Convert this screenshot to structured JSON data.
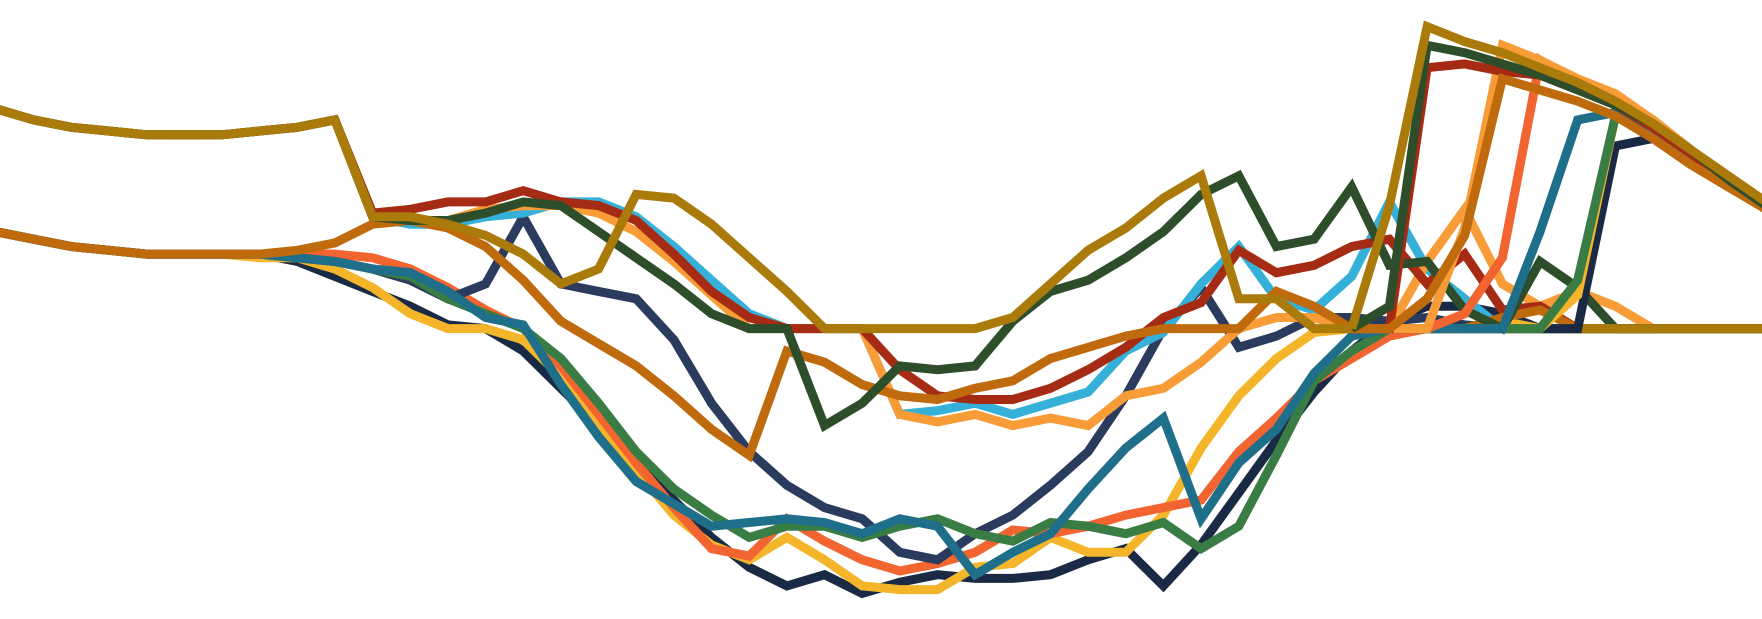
{
  "chart_data": {
    "type": "line",
    "x": [
      0,
      1,
      2,
      3,
      4,
      5,
      6,
      7,
      8,
      9,
      10,
      11,
      12,
      13,
      14,
      15,
      16,
      17,
      18,
      19,
      20,
      21,
      22,
      23,
      24,
      25,
      26,
      27,
      28,
      29,
      30,
      31,
      32,
      33,
      34,
      35,
      36,
      37,
      38,
      39,
      40,
      41,
      42,
      43,
      44,
      45,
      46,
      47
    ],
    "xlim": [
      0,
      47
    ],
    "ylim": [
      -7.6,
      8.6
    ],
    "grid": false,
    "series": [
      {
        "color": "#1b2a44",
        "values": [
          2.6,
          2.4,
          2.2,
          2.1,
          2.0,
          2.0,
          2.0,
          2.0,
          1.8,
          1.4,
          1.0,
          0.6,
          0.1,
          0.0,
          -0.6,
          -1.6,
          -2.6,
          -3.6,
          -4.6,
          -5.6,
          -6.4,
          -6.9,
          -6.6,
          -7.1,
          -6.8,
          -6.6,
          -6.7,
          -6.7,
          -6.6,
          -6.2,
          -5.9,
          -6.9,
          -5.8,
          -4.4,
          -3.0,
          -1.7,
          -0.6,
          0.2,
          0.6,
          0.6,
          0.4,
          0.0,
          0.0,
          0.0,
          0.0,
          0.0,
          0.0,
          0.0
        ]
      },
      {
        "color": "#f4b52a",
        "values": [
          2.6,
          2.4,
          2.2,
          2.1,
          2.0,
          2.0,
          2.0,
          1.9,
          1.9,
          1.6,
          1.1,
          0.4,
          0.0,
          0.0,
          -0.3,
          -1.3,
          -2.6,
          -3.8,
          -5.0,
          -5.8,
          -6.2,
          -5.6,
          -6.2,
          -6.9,
          -7.0,
          -7.0,
          -6.4,
          -6.3,
          -5.6,
          -6.0,
          -6.0,
          -5.0,
          -3.2,
          -1.8,
          -0.8,
          -0.1,
          0.0,
          0.0,
          0.0,
          0.0,
          0.2,
          0.0,
          0.0,
          0.0,
          0.0,
          0.0,
          0.0,
          0.0
        ]
      },
      {
        "color": "#f26430",
        "values": [
          2.6,
          2.4,
          2.2,
          2.1,
          2.0,
          2.0,
          2.0,
          2.0,
          2.0,
          2.0,
          1.9,
          1.6,
          1.1,
          0.5,
          0.0,
          -1.0,
          -2.3,
          -3.6,
          -4.8,
          -5.9,
          -6.1,
          -5.1,
          -5.7,
          -6.2,
          -6.5,
          -6.3,
          -6.0,
          -5.4,
          -5.5,
          -5.3,
          -5.0,
          -4.8,
          -4.6,
          -3.3,
          -2.4,
          -1.4,
          -0.8,
          -0.2,
          0.0,
          0.0,
          0.0,
          0.0,
          0.0,
          0.0,
          0.0,
          0.0,
          0.0,
          0.0
        ]
      },
      {
        "color": "#2b3b5e",
        "values": [
          2.6,
          2.4,
          2.2,
          2.1,
          2.0,
          2.0,
          2.0,
          2.0,
          1.9,
          1.8,
          1.6,
          1.3,
          0.8,
          1.2,
          3.0,
          1.2,
          1.0,
          0.8,
          -0.3,
          -2.0,
          -3.3,
          -4.2,
          -4.8,
          -5.1,
          -6.0,
          -6.2,
          -5.5,
          -5.0,
          -4.2,
          -3.3,
          -1.8,
          0.0,
          1.1,
          -0.5,
          -0.2,
          0.3,
          0.3,
          0.2,
          0.3,
          0.1,
          0.0,
          0.0,
          0.0,
          0.0,
          0.0,
          0.0,
          0.0,
          0.0
        ]
      },
      {
        "color": "#3a7d44",
        "values": [
          2.6,
          2.4,
          2.2,
          2.1,
          2.0,
          2.0,
          2.0,
          2.0,
          1.9,
          1.8,
          1.6,
          1.4,
          0.8,
          0.4,
          0.0,
          -0.8,
          -2.0,
          -3.3,
          -4.3,
          -5.0,
          -5.6,
          -5.3,
          -5.3,
          -5.6,
          -5.3,
          -5.1,
          -5.5,
          -5.7,
          -5.2,
          -5.3,
          -5.5,
          -5.2,
          -5.9,
          -5.3,
          -3.4,
          -1.4,
          -0.6,
          0.0,
          0.0,
          0.0,
          0.0,
          0.0,
          0.0,
          0.0,
          0.0,
          0.0,
          0.0,
          0.0
        ]
      },
      {
        "color": "#1f6f8b",
        "values": [
          2.6,
          2.4,
          2.2,
          2.1,
          2.0,
          2.0,
          2.0,
          2.0,
          1.9,
          1.8,
          1.6,
          1.5,
          1.0,
          0.3,
          0.1,
          -1.5,
          -2.9,
          -4.1,
          -4.7,
          -5.3,
          -5.2,
          -5.1,
          -5.2,
          -5.5,
          -5.1,
          -5.3,
          -6.6,
          -6.0,
          -5.5,
          -4.3,
          -3.2,
          -2.4,
          -5.1,
          -3.6,
          -2.7,
          -1.2,
          -0.2,
          0.0,
          0.0,
          0.0,
          0.0,
          0.0,
          0.0,
          0.0,
          0.0,
          0.0,
          0.0,
          0.0
        ]
      },
      {
        "color": "#35b0d8",
        "values": [
          5.9,
          5.6,
          5.4,
          5.3,
          5.2,
          5.2,
          5.2,
          5.3,
          5.4,
          5.6,
          3.0,
          2.8,
          2.8,
          3.0,
          3.1,
          3.4,
          3.4,
          3.0,
          2.2,
          1.3,
          0.4,
          0.0,
          0.0,
          0.0,
          -2.3,
          -2.2,
          -2.0,
          -2.3,
          -2.0,
          -1.7,
          -0.6,
          -0.1,
          1.2,
          2.2,
          0.8,
          0.5,
          1.4,
          3.4,
          1.6,
          0.8,
          0.0,
          0.0,
          0.0,
          0.0,
          0.0,
          0.0,
          0.0,
          0.0
        ]
      },
      {
        "color": "#f79c37",
        "values": [
          5.9,
          5.6,
          5.4,
          5.3,
          5.2,
          5.2,
          5.2,
          5.3,
          5.4,
          5.6,
          3.0,
          2.9,
          2.9,
          3.2,
          3.3,
          3.3,
          3.1,
          2.6,
          1.8,
          0.9,
          0.0,
          0.0,
          0.0,
          0.0,
          -2.3,
          -2.5,
          -2.3,
          -2.6,
          -2.4,
          -2.6,
          -1.8,
          -1.6,
          -0.9,
          0.0,
          0.3,
          0.3,
          0.0,
          0.0,
          1.8,
          3.2,
          1.2,
          0.6,
          1.0,
          0.6,
          0.0,
          0.0,
          0.0,
          0.0
        ]
      },
      {
        "color": "#a62b14",
        "values": [
          5.9,
          5.6,
          5.4,
          5.3,
          5.2,
          5.2,
          5.2,
          5.3,
          5.4,
          5.6,
          3.1,
          3.2,
          3.4,
          3.4,
          3.7,
          3.4,
          3.3,
          2.9,
          2.0,
          1.0,
          0.3,
          0.0,
          0.0,
          0.0,
          -1.1,
          -1.8,
          -1.9,
          -1.9,
          -1.6,
          -1.1,
          -0.5,
          0.3,
          0.7,
          2.1,
          1.5,
          1.7,
          2.2,
          2.4,
          1.2,
          2.0,
          0.5,
          0.6,
          0.0,
          0.0,
          0.0,
          0.0,
          0.0,
          0.0
        ]
      },
      {
        "color": "#c06a0e",
        "values": [
          2.6,
          2.4,
          2.2,
          2.1,
          2.0,
          2.0,
          2.0,
          2.0,
          2.1,
          2.3,
          2.8,
          2.9,
          2.7,
          2.2,
          1.3,
          0.2,
          -0.4,
          -1.0,
          -1.8,
          -2.7,
          -3.4,
          -0.6,
          -0.9,
          -1.5,
          -1.8,
          -1.9,
          -1.6,
          -1.4,
          -0.8,
          -0.5,
          -0.2,
          0.0,
          0.0,
          0.0,
          1.0,
          0.6,
          0.0,
          0.0,
          0.0,
          0.0,
          0.3,
          0.5,
          0.0,
          0.0,
          0.0,
          0.0,
          0.0,
          0.0
        ]
      },
      {
        "color": "#2e4d2a",
        "values": [
          5.9,
          5.6,
          5.4,
          5.3,
          5.2,
          5.2,
          5.2,
          5.3,
          5.4,
          5.6,
          3.0,
          2.9,
          2.9,
          3.1,
          3.4,
          3.3,
          2.6,
          1.9,
          1.2,
          0.4,
          0.0,
          0.0,
          -2.6,
          -2.0,
          -1.0,
          -1.1,
          -1.0,
          0.2,
          1.0,
          1.3,
          1.9,
          2.6,
          3.6,
          4.1,
          2.2,
          2.4,
          3.8,
          1.7,
          1.8,
          0.5,
          0.0,
          1.8,
          1.1,
          0.0,
          0.0,
          0.0,
          0.0,
          0.0
        ]
      },
      {
        "color": "#aa7a0a",
        "values": [
          5.9,
          5.6,
          5.4,
          5.3,
          5.2,
          5.2,
          5.2,
          5.3,
          5.4,
          5.6,
          3.0,
          3.0,
          2.8,
          2.5,
          2.0,
          1.2,
          1.6,
          3.6,
          3.5,
          2.8,
          1.9,
          1.0,
          0.0,
          0.0,
          0.0,
          0.0,
          0.0,
          0.3,
          1.2,
          2.1,
          2.7,
          3.5,
          4.1,
          0.8,
          0.8,
          0.0,
          0.0,
          0.0,
          0.0,
          0.0,
          0.0,
          0.0,
          0.0,
          0.0,
          0.0,
          0.0,
          0.0,
          0.0
        ]
      }
    ],
    "right_segments": {
      "x": [
        36,
        37,
        38,
        39,
        40,
        41,
        42,
        43,
        44,
        45,
        46,
        47
      ],
      "series": [
        {
          "color": "#1b2a44",
          "values": [
            0.0,
            0.0,
            0.0,
            0.0,
            0.0,
            0.0,
            0.0,
            4.9,
            5.1,
            4.6,
            3.9,
            3.3
          ]
        },
        {
          "color": "#f4b52a",
          "values": [
            0.0,
            0.0,
            0.0,
            0.0,
            0.0,
            0.0,
            0.9,
            5.7,
            5.2,
            4.6,
            3.9,
            3.3
          ]
        },
        {
          "color": "#3a7d44",
          "values": [
            0.0,
            0.0,
            0.0,
            0.0,
            0.0,
            0.0,
            1.3,
            5.7,
            5.3,
            4.6,
            3.9,
            3.3
          ]
        },
        {
          "color": "#1f6f8b",
          "values": [
            0.0,
            0.0,
            0.0,
            0.0,
            0.0,
            2.6,
            5.6,
            5.8,
            5.3,
            4.6,
            3.9,
            3.3
          ]
        },
        {
          "color": "#f26430",
          "values": [
            0.0,
            0.0,
            0.0,
            0.4,
            1.9,
            7.2,
            6.6,
            6.2,
            5.6,
            4.8,
            4.0,
            3.3
          ]
        },
        {
          "color": "#f79c37",
          "values": [
            0.0,
            0.0,
            0.0,
            2.7,
            7.6,
            7.2,
            6.7,
            6.3,
            5.6,
            4.8,
            4.0,
            3.3
          ]
        },
        {
          "color": "#a62b14",
          "values": [
            0.0,
            0.0,
            7.0,
            7.1,
            6.9,
            6.8,
            6.4,
            6.0,
            5.4,
            4.7,
            3.9,
            3.2
          ]
        },
        {
          "color": "#c06a0e",
          "values": [
            0.0,
            0.0,
            0.8,
            2.5,
            6.7,
            6.4,
            6.1,
            5.7,
            5.1,
            4.4,
            3.8,
            3.2
          ]
        },
        {
          "color": "#2e4d2a",
          "values": [
            0.0,
            0.6,
            7.6,
            7.4,
            7.1,
            6.8,
            6.4,
            6.0,
            5.5,
            4.8,
            4.0,
            3.3
          ]
        },
        {
          "color": "#aa7a0a",
          "values": [
            0.0,
            3.3,
            8.1,
            7.7,
            7.4,
            7.0,
            6.6,
            6.1,
            5.5,
            4.8,
            4.1,
            3.4
          ]
        }
      ]
    }
  }
}
